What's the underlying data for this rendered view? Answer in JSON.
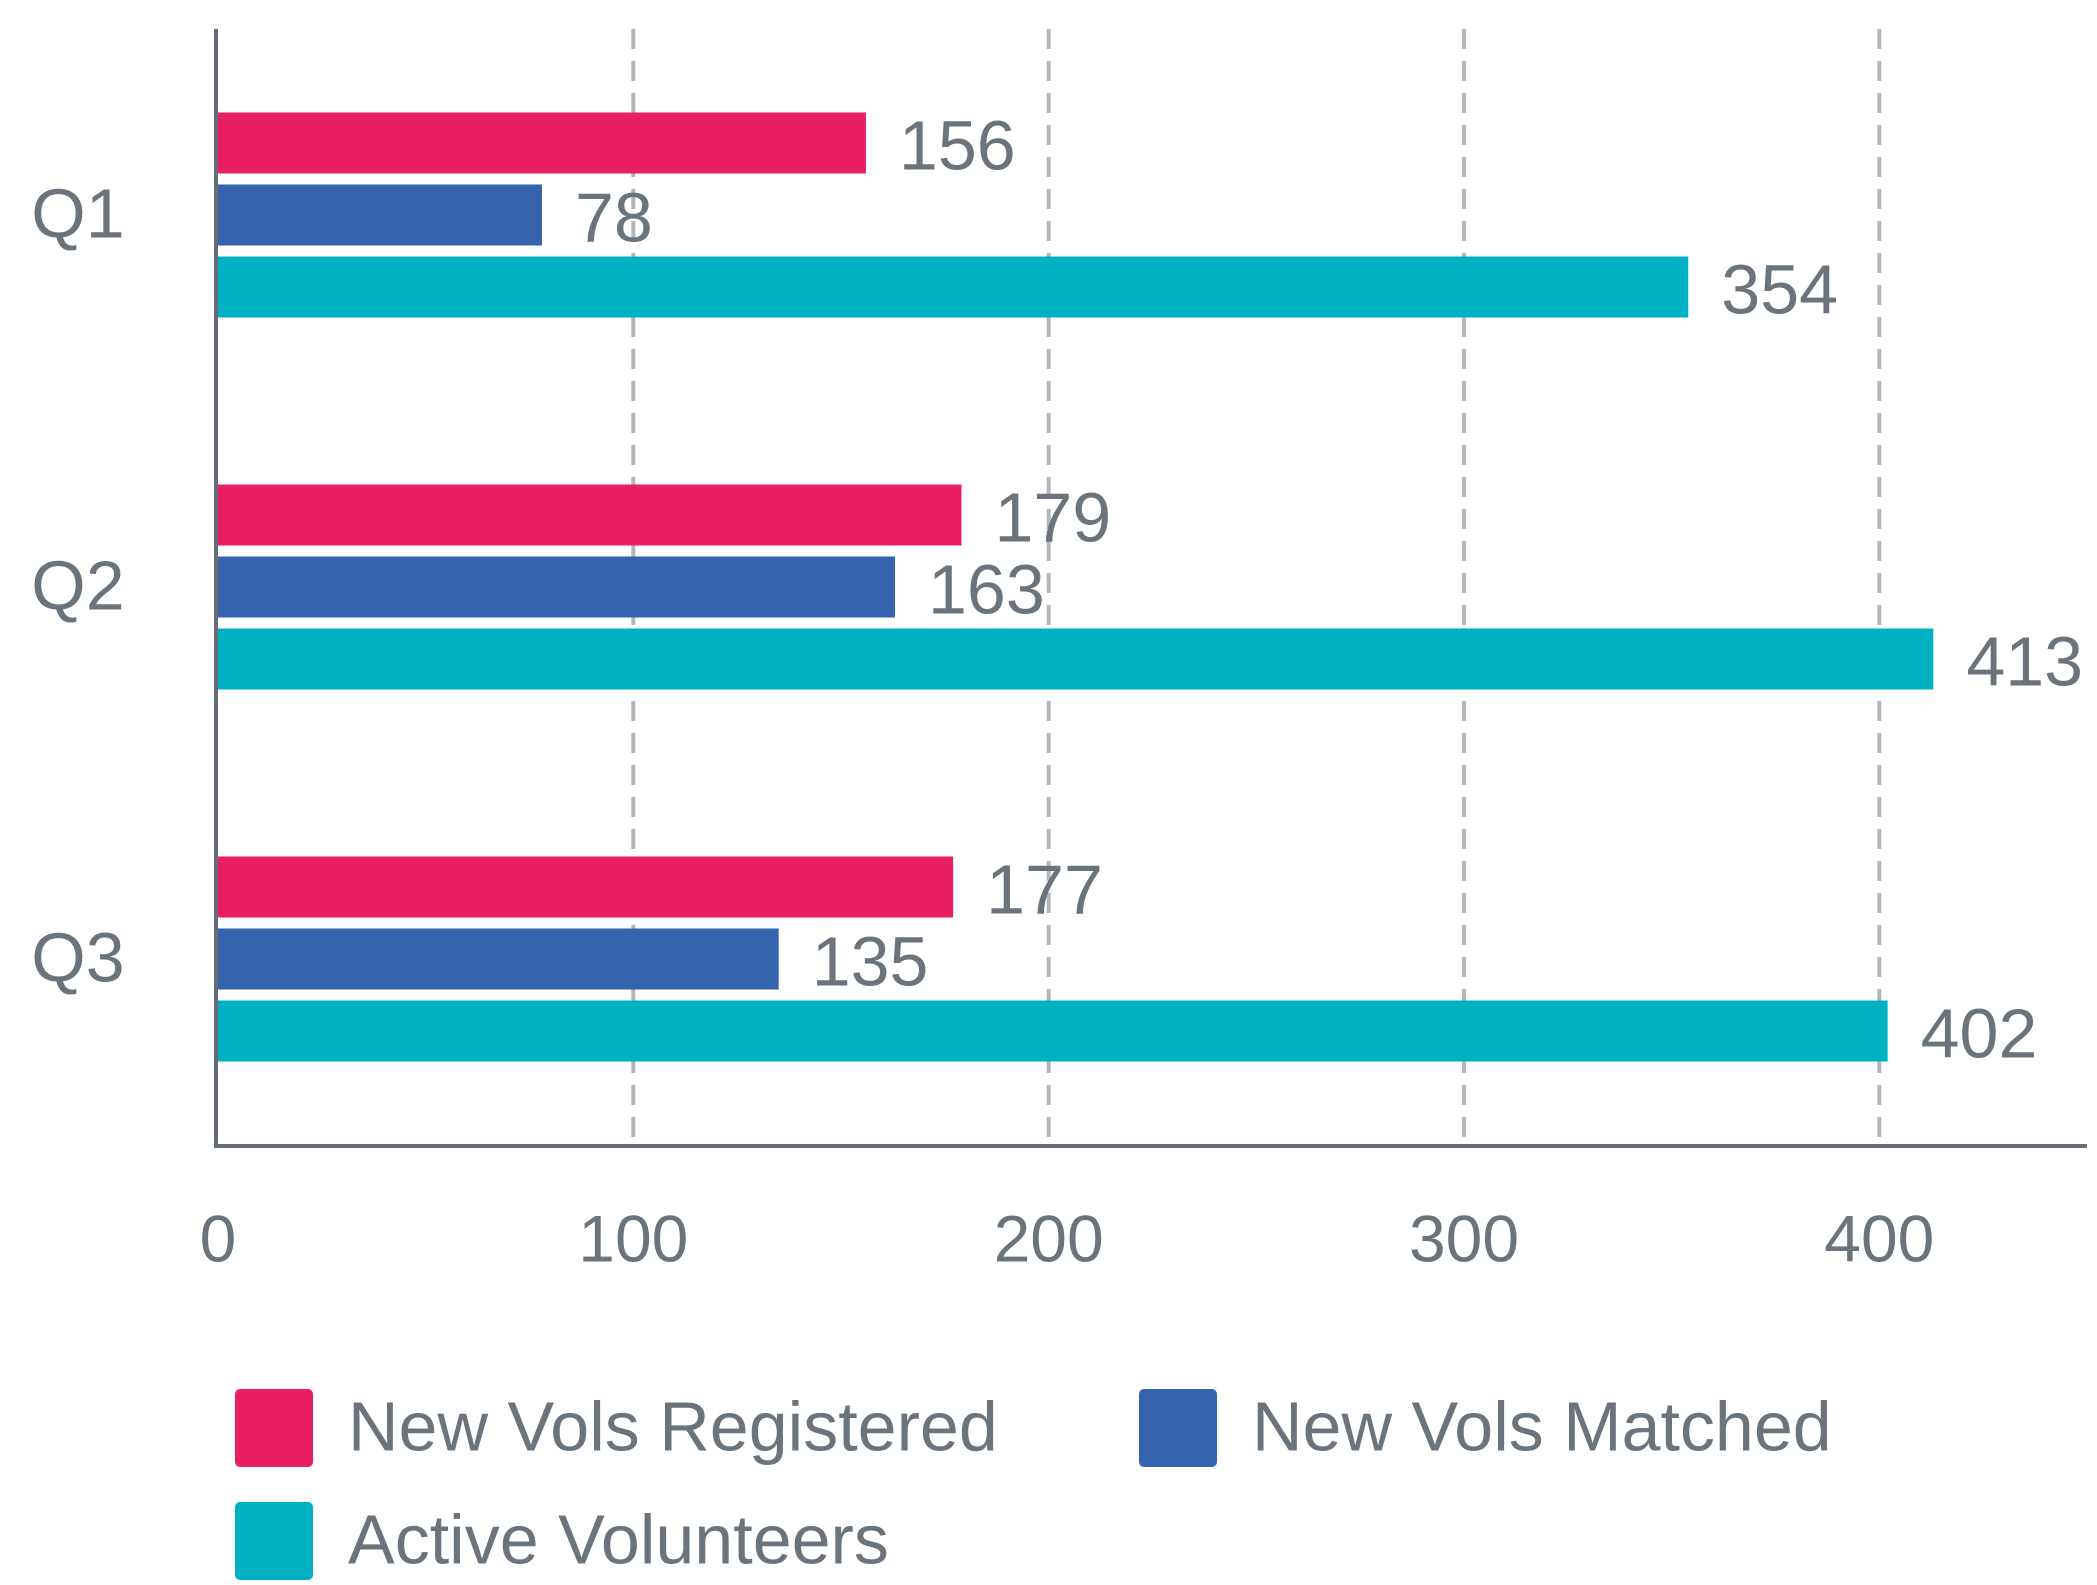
{
  "chart_data": {
    "type": "barh",
    "categories": [
      "Q1",
      "Q2",
      "Q3"
    ],
    "series": [
      {
        "name": "New Vols Registered",
        "color": "#e91e63",
        "values": [
          156,
          179,
          177
        ]
      },
      {
        "name": "New Vols Matched",
        "color": "#3563ae",
        "values": [
          78,
          163,
          135
        ]
      },
      {
        "name": "Active Volunteers",
        "color": "#00b0c3",
        "values": [
          354,
          413,
          402
        ]
      }
    ],
    "xlim": [
      0,
      450
    ],
    "xticks": [
      0,
      100,
      200,
      300,
      400
    ],
    "grid": true,
    "legend": "bottom"
  }
}
